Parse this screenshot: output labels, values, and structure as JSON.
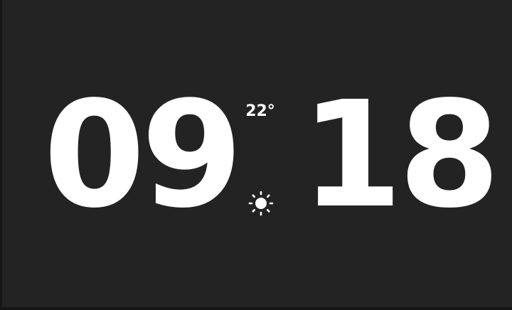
{
  "clock": {
    "hours": "09",
    "minutes": "18"
  },
  "weather": {
    "temperature": "22°",
    "condition_icon": "sun-icon"
  },
  "colors": {
    "background": "#232323",
    "foreground": "#ffffff"
  }
}
